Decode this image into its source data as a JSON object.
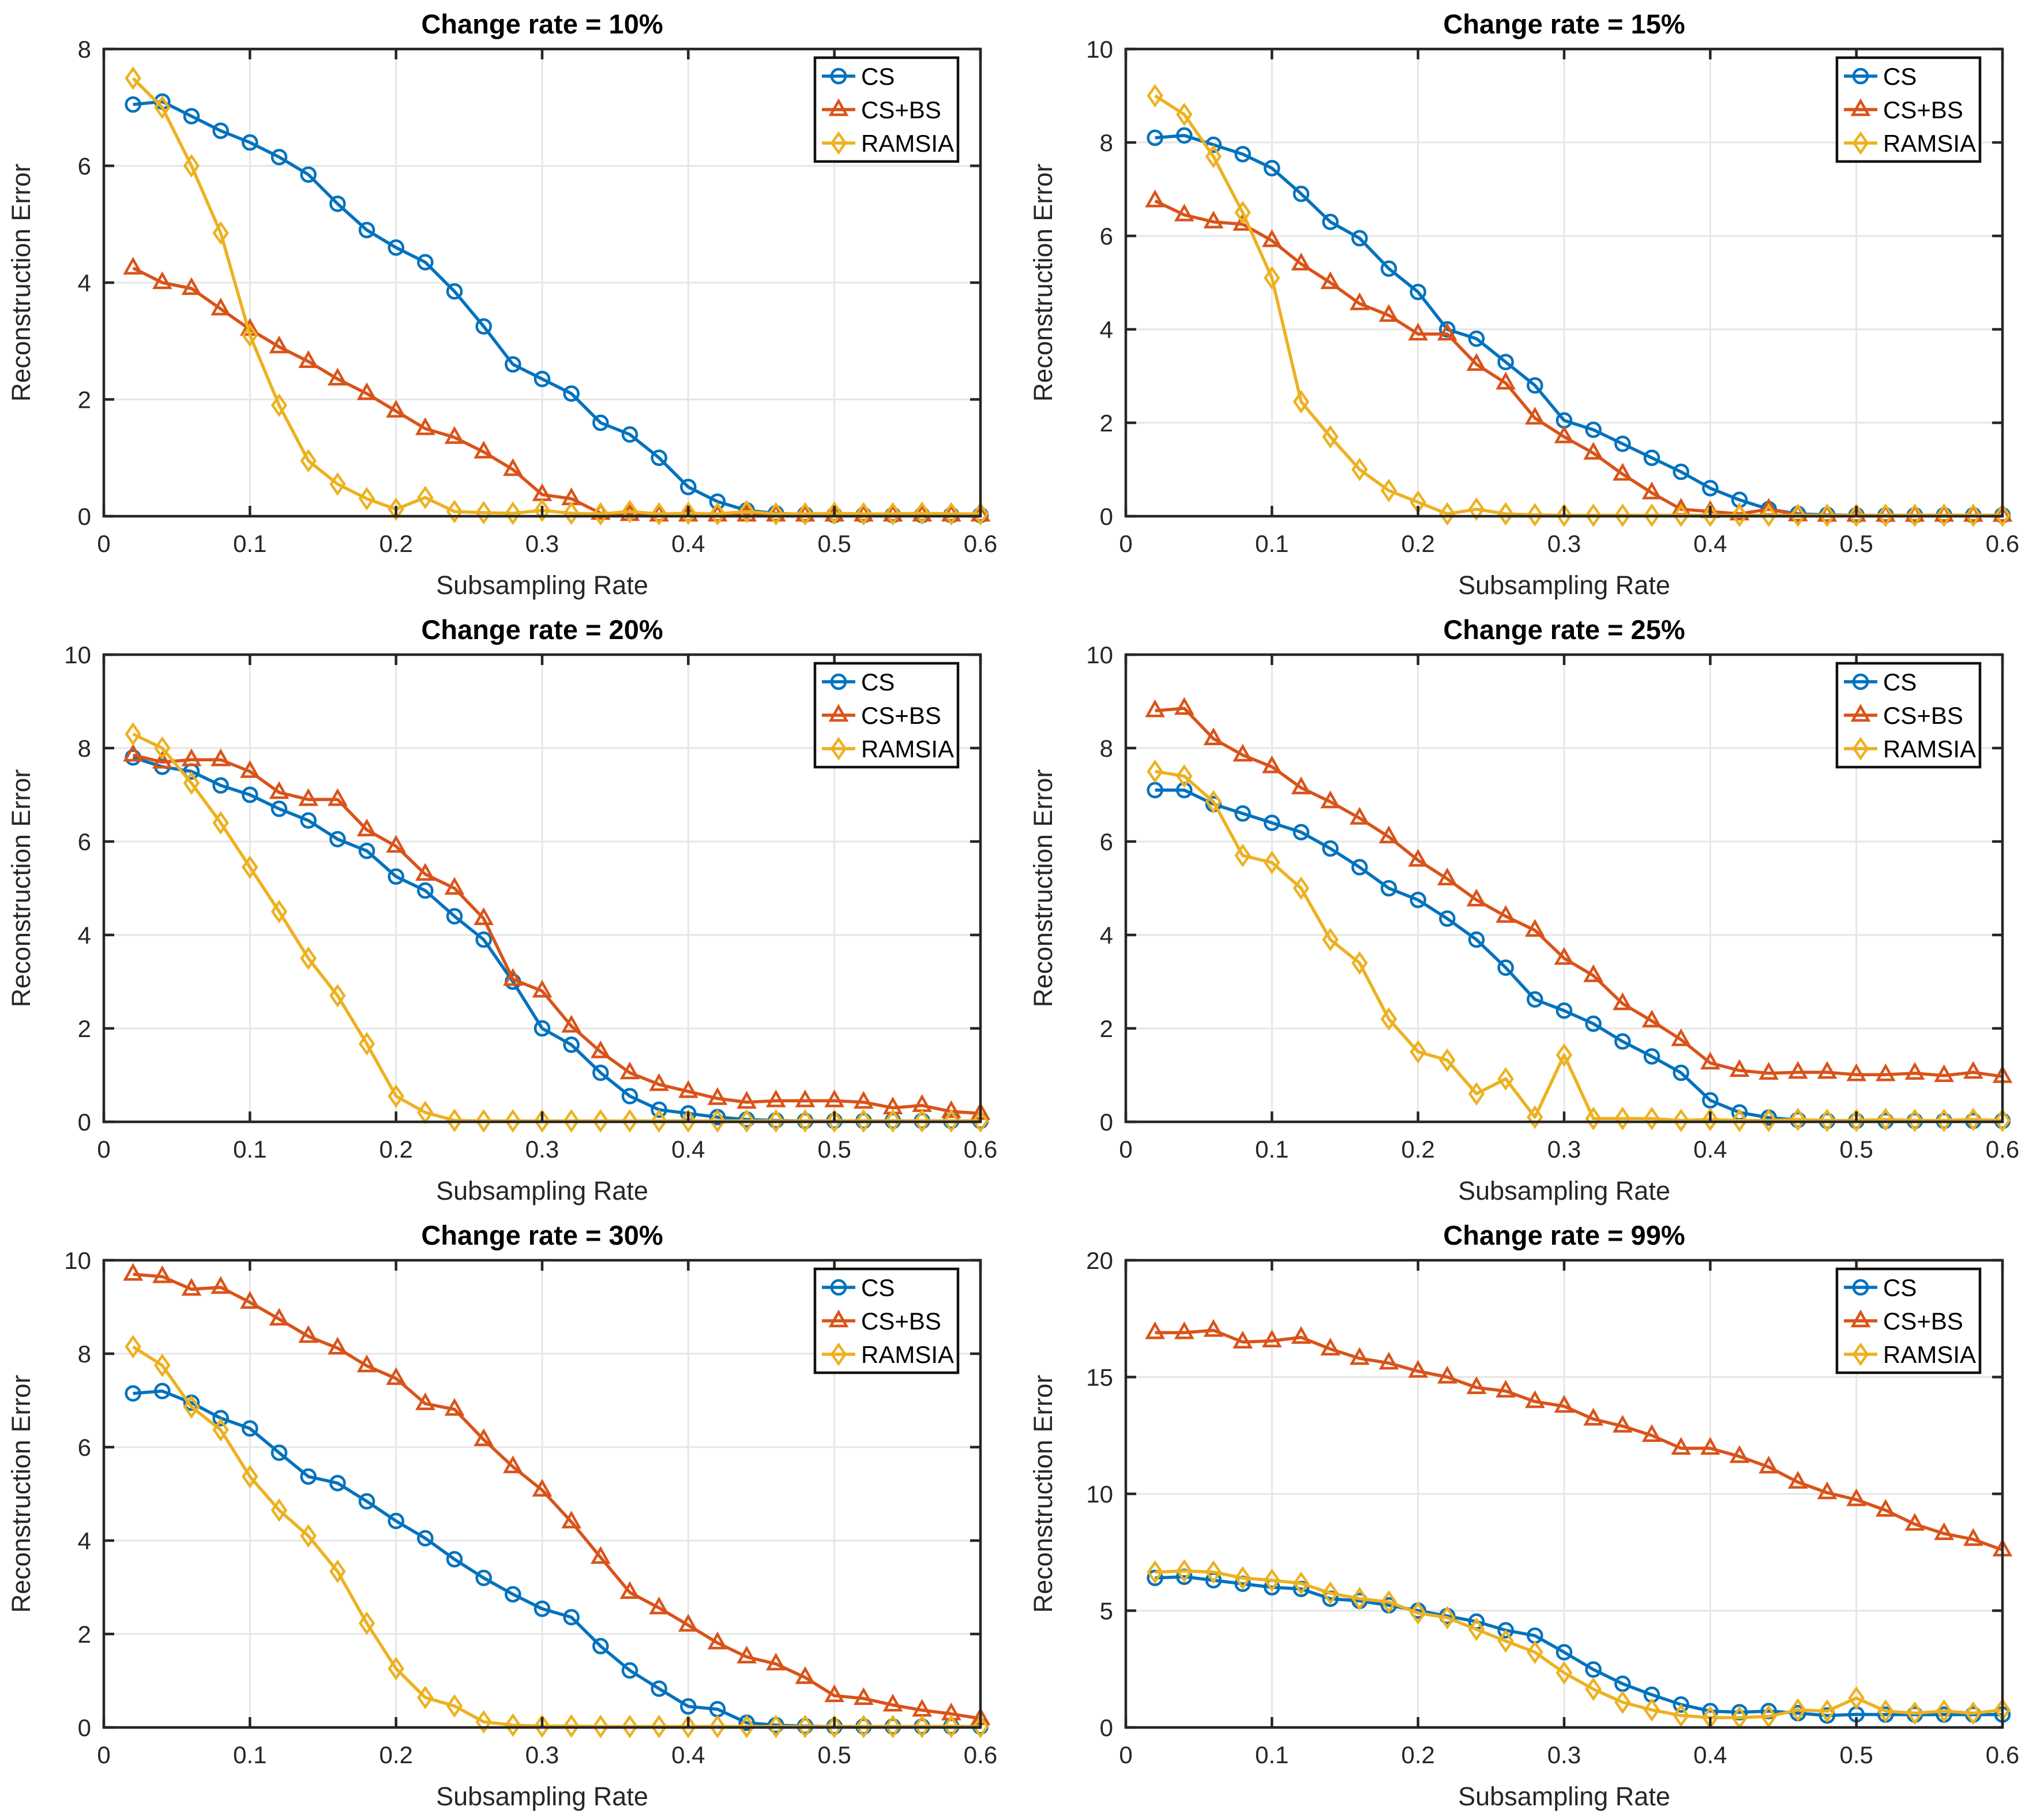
{
  "figure": {
    "xlabel": "Subsampling Rate",
    "ylabel": "Reconstruction Error",
    "legend_labels": [
      "CS",
      "CS+BS",
      "RAMSIA"
    ],
    "colors": {
      "cs": "#0072BD",
      "csbs": "#D95319",
      "ramsia": "#EDB120",
      "axis": "#262626",
      "grid": "#E6E6E6",
      "background": "#FFFFFF"
    }
  },
  "chart_data": [
    {
      "type": "line",
      "title": "Change rate = 10%",
      "xlabel": "Subsampling Rate",
      "ylabel": "Reconstruction Error",
      "xlim": [
        0,
        0.6
      ],
      "ylim": [
        0,
        8
      ],
      "xticks": [
        0,
        0.1,
        0.2,
        0.3,
        0.4,
        0.5,
        0.6
      ],
      "yticks": [
        0,
        2,
        4,
        6,
        8
      ],
      "grid": true,
      "legend_position": "top-right",
      "x": [
        0.02,
        0.04,
        0.06,
        0.08,
        0.1,
        0.12,
        0.14,
        0.16,
        0.18,
        0.2,
        0.22,
        0.24,
        0.26,
        0.28,
        0.3,
        0.32,
        0.34,
        0.36,
        0.38,
        0.4,
        0.42,
        0.44,
        0.46,
        0.48,
        0.5,
        0.52,
        0.54,
        0.56,
        0.58,
        0.6
      ],
      "series": [
        {
          "name": "CS",
          "color": "#0072BD",
          "marker": "circle",
          "values": [
            7.05,
            7.1,
            6.85,
            6.6,
            6.4,
            6.15,
            5.85,
            5.35,
            4.9,
            4.6,
            4.35,
            3.85,
            3.25,
            2.6,
            2.35,
            2.1,
            1.6,
            1.4,
            1.0,
            0.5,
            0.25,
            0.1,
            0.05,
            0.03,
            0.02,
            0.02,
            0.02,
            0.02,
            0.02,
            0.02
          ]
        },
        {
          "name": "CS+BS",
          "color": "#D95319",
          "marker": "triangle",
          "values": [
            4.25,
            4.0,
            3.9,
            3.55,
            3.2,
            2.9,
            2.65,
            2.35,
            2.1,
            1.8,
            1.5,
            1.35,
            1.1,
            0.8,
            0.37,
            0.3,
            0.05,
            0.03,
            0.02,
            0.02,
            0.02,
            0.02,
            0.02,
            0.02,
            0.02,
            0.02,
            0.02,
            0.02,
            0.02,
            0.02
          ]
        },
        {
          "name": "RAMSIA",
          "color": "#EDB120",
          "marker": "diamond",
          "values": [
            7.5,
            7.0,
            6.0,
            4.85,
            3.1,
            1.9,
            0.95,
            0.55,
            0.3,
            0.12,
            0.32,
            0.08,
            0.06,
            0.05,
            0.1,
            0.05,
            0.04,
            0.08,
            0.04,
            0.05,
            0.04,
            0.08,
            0.04,
            0.04,
            0.05,
            0.04,
            0.04,
            0.05,
            0.04,
            0.04
          ]
        }
      ]
    },
    {
      "type": "line",
      "title": "Change rate = 15%",
      "xlabel": "Subsampling Rate",
      "ylabel": "Reconstruction Error",
      "xlim": [
        0,
        0.6
      ],
      "ylim": [
        0,
        10
      ],
      "xticks": [
        0,
        0.1,
        0.2,
        0.3,
        0.4,
        0.5,
        0.6
      ],
      "yticks": [
        0,
        2,
        4,
        6,
        8,
        10
      ],
      "grid": true,
      "legend_position": "top-right",
      "x": [
        0.02,
        0.04,
        0.06,
        0.08,
        0.1,
        0.12,
        0.14,
        0.16,
        0.18,
        0.2,
        0.22,
        0.24,
        0.26,
        0.28,
        0.3,
        0.32,
        0.34,
        0.36,
        0.38,
        0.4,
        0.42,
        0.44,
        0.46,
        0.48,
        0.5,
        0.52,
        0.54,
        0.56,
        0.58,
        0.6
      ],
      "series": [
        {
          "name": "CS",
          "color": "#0072BD",
          "marker": "circle",
          "values": [
            8.1,
            8.15,
            7.95,
            7.75,
            7.45,
            6.9,
            6.3,
            5.95,
            5.3,
            4.8,
            4.0,
            3.8,
            3.3,
            2.8,
            2.05,
            1.85,
            1.55,
            1.25,
            0.95,
            0.6,
            0.35,
            0.15,
            0.05,
            0.03,
            0.02,
            0.02,
            0.02,
            0.02,
            0.02,
            0.02
          ]
        },
        {
          "name": "CS+BS",
          "color": "#D95319",
          "marker": "triangle",
          "values": [
            6.75,
            6.45,
            6.3,
            6.25,
            5.9,
            5.4,
            5.0,
            4.55,
            4.3,
            3.9,
            3.9,
            3.25,
            2.85,
            2.1,
            1.7,
            1.35,
            0.9,
            0.5,
            0.15,
            0.1,
            0.05,
            0.15,
            0.03,
            0.02,
            0.02,
            0.02,
            0.02,
            0.02,
            0.02,
            0.02
          ]
        },
        {
          "name": "RAMSIA",
          "color": "#EDB120",
          "marker": "diamond",
          "values": [
            9.0,
            8.6,
            7.7,
            6.5,
            5.1,
            2.45,
            1.7,
            1.0,
            0.55,
            0.3,
            0.05,
            0.15,
            0.05,
            0.03,
            0.02,
            0.02,
            0.02,
            0.02,
            0.02,
            0.02,
            0.02,
            0.02,
            0.02,
            0.02,
            0.02,
            0.02,
            0.02,
            0.02,
            0.02,
            0.02
          ]
        }
      ]
    },
    {
      "type": "line",
      "title": "Change rate = 20%",
      "xlabel": "Subsampling Rate",
      "ylabel": "Reconstruction Error",
      "xlim": [
        0,
        0.6
      ],
      "ylim": [
        0,
        10
      ],
      "xticks": [
        0,
        0.1,
        0.2,
        0.3,
        0.4,
        0.5,
        0.6
      ],
      "yticks": [
        0,
        2,
        4,
        6,
        8,
        10
      ],
      "grid": true,
      "legend_position": "top-right",
      "x": [
        0.02,
        0.04,
        0.06,
        0.08,
        0.1,
        0.12,
        0.14,
        0.16,
        0.18,
        0.2,
        0.22,
        0.24,
        0.26,
        0.28,
        0.3,
        0.32,
        0.34,
        0.36,
        0.38,
        0.4,
        0.42,
        0.44,
        0.46,
        0.48,
        0.5,
        0.52,
        0.54,
        0.56,
        0.58,
        0.6
      ],
      "series": [
        {
          "name": "CS",
          "color": "#0072BD",
          "marker": "circle",
          "values": [
            7.8,
            7.6,
            7.5,
            7.2,
            7.0,
            6.7,
            6.45,
            6.05,
            5.8,
            5.25,
            4.95,
            4.4,
            3.9,
            3.0,
            2.0,
            1.65,
            1.05,
            0.55,
            0.26,
            0.18,
            0.1,
            0.05,
            0.03,
            0.02,
            0.02,
            0.02,
            0.02,
            0.02,
            0.02,
            0.02
          ]
        },
        {
          "name": "CS+BS",
          "color": "#D95319",
          "marker": "triangle",
          "values": [
            7.85,
            7.7,
            7.75,
            7.75,
            7.5,
            7.05,
            6.9,
            6.9,
            6.25,
            5.9,
            5.3,
            5.0,
            4.35,
            3.05,
            2.8,
            2.05,
            1.5,
            1.05,
            0.8,
            0.65,
            0.5,
            0.42,
            0.45,
            0.45,
            0.45,
            0.42,
            0.3,
            0.35,
            0.22,
            0.18
          ]
        },
        {
          "name": "RAMSIA",
          "color": "#EDB120",
          "marker": "diamond",
          "values": [
            8.3,
            8.0,
            7.25,
            6.4,
            5.45,
            4.5,
            3.5,
            2.7,
            1.67,
            0.55,
            0.2,
            0.03,
            0.02,
            0.02,
            0.02,
            0.02,
            0.02,
            0.02,
            0.02,
            0.02,
            0.02,
            0.02,
            0.02,
            0.02,
            0.02,
            0.02,
            0.02,
            0.02,
            0.02,
            0.02
          ]
        }
      ]
    },
    {
      "type": "line",
      "title": "Change rate = 25%",
      "xlabel": "Subsampling Rate",
      "ylabel": "Reconstruction Error",
      "xlim": [
        0,
        0.6
      ],
      "ylim": [
        0,
        10
      ],
      "xticks": [
        0,
        0.1,
        0.2,
        0.3,
        0.4,
        0.5,
        0.6
      ],
      "yticks": [
        0,
        2,
        4,
        6,
        8,
        10
      ],
      "grid": true,
      "legend_position": "top-right",
      "x": [
        0.02,
        0.04,
        0.06,
        0.08,
        0.1,
        0.12,
        0.14,
        0.16,
        0.18,
        0.2,
        0.22,
        0.24,
        0.26,
        0.28,
        0.3,
        0.32,
        0.34,
        0.36,
        0.38,
        0.4,
        0.42,
        0.44,
        0.46,
        0.48,
        0.5,
        0.52,
        0.54,
        0.56,
        0.58,
        0.6
      ],
      "series": [
        {
          "name": "CS",
          "color": "#0072BD",
          "marker": "circle",
          "values": [
            7.1,
            7.1,
            6.8,
            6.6,
            6.4,
            6.2,
            5.85,
            5.45,
            5.0,
            4.75,
            4.35,
            3.9,
            3.3,
            2.62,
            2.38,
            2.1,
            1.72,
            1.4,
            1.05,
            0.46,
            0.2,
            0.09,
            0.04,
            0.02,
            0.02,
            0.02,
            0.02,
            0.02,
            0.02,
            0.02
          ]
        },
        {
          "name": "CS+BS",
          "color": "#D95319",
          "marker": "triangle",
          "values": [
            8.8,
            8.85,
            8.2,
            7.85,
            7.6,
            7.15,
            6.85,
            6.5,
            6.1,
            5.6,
            5.2,
            4.75,
            4.4,
            4.1,
            3.5,
            3.13,
            2.53,
            2.16,
            1.76,
            1.26,
            1.1,
            1.04,
            1.06,
            1.06,
            1.01,
            1.01,
            1.04,
            0.99,
            1.06,
            0.97
          ]
        },
        {
          "name": "RAMSIA",
          "color": "#EDB120",
          "marker": "diamond",
          "values": [
            7.5,
            7.4,
            6.85,
            5.7,
            5.55,
            5.0,
            3.9,
            3.4,
            2.2,
            1.5,
            1.32,
            0.6,
            0.92,
            0.1,
            1.43,
            0.07,
            0.07,
            0.07,
            0.03,
            0.05,
            0.03,
            0.03,
            0.05,
            0.03,
            0.03,
            0.05,
            0.03,
            0.03,
            0.05,
            0.03
          ]
        }
      ]
    },
    {
      "type": "line",
      "title": "Change rate = 30%",
      "xlabel": "Subsampling Rate",
      "ylabel": "Reconstruction Error",
      "xlim": [
        0,
        0.6
      ],
      "ylim": [
        0,
        10
      ],
      "xticks": [
        0,
        0.1,
        0.2,
        0.3,
        0.4,
        0.5,
        0.6
      ],
      "yticks": [
        0,
        2,
        4,
        6,
        8,
        10
      ],
      "grid": true,
      "legend_position": "top-right",
      "x": [
        0.02,
        0.04,
        0.06,
        0.08,
        0.1,
        0.12,
        0.14,
        0.16,
        0.18,
        0.2,
        0.22,
        0.24,
        0.26,
        0.28,
        0.3,
        0.32,
        0.34,
        0.36,
        0.38,
        0.4,
        0.42,
        0.44,
        0.46,
        0.48,
        0.5,
        0.52,
        0.54,
        0.56,
        0.58,
        0.6
      ],
      "series": [
        {
          "name": "CS",
          "color": "#0072BD",
          "marker": "circle",
          "values": [
            7.15,
            7.2,
            6.95,
            6.62,
            6.4,
            5.88,
            5.37,
            5.23,
            4.84,
            4.42,
            4.05,
            3.6,
            3.2,
            2.85,
            2.54,
            2.36,
            1.74,
            1.22,
            0.83,
            0.45,
            0.39,
            0.1,
            0.05,
            0.03,
            0.02,
            0.02,
            0.02,
            0.02,
            0.02,
            0.02
          ]
        },
        {
          "name": "CS+BS",
          "color": "#D95319",
          "marker": "triangle",
          "values": [
            9.7,
            9.65,
            9.38,
            9.42,
            9.1,
            8.74,
            8.37,
            8.12,
            7.74,
            7.47,
            6.93,
            6.81,
            6.16,
            5.58,
            5.08,
            4.4,
            3.64,
            2.89,
            2.56,
            2.19,
            1.81,
            1.51,
            1.36,
            1.07,
            0.68,
            0.62,
            0.48,
            0.37,
            0.29,
            0.19
          ]
        },
        {
          "name": "RAMSIA",
          "color": "#EDB120",
          "marker": "diamond",
          "values": [
            8.15,
            7.75,
            6.86,
            6.37,
            5.37,
            4.65,
            4.1,
            3.34,
            2.23,
            1.26,
            0.64,
            0.46,
            0.12,
            0.05,
            0.03,
            0.03,
            0.02,
            0.02,
            0.02,
            0.02,
            0.02,
            0.02,
            0.02,
            0.02,
            0.02,
            0.02,
            0.02,
            0.02,
            0.02,
            0.02
          ]
        }
      ]
    },
    {
      "type": "line",
      "title": "Change rate = 99%",
      "xlabel": "Subsampling Rate",
      "ylabel": "Reconstruction Error",
      "xlim": [
        0,
        0.6
      ],
      "ylim": [
        0,
        20
      ],
      "xticks": [
        0,
        0.1,
        0.2,
        0.3,
        0.4,
        0.5,
        0.6
      ],
      "yticks": [
        0,
        5,
        10,
        15,
        20
      ],
      "grid": true,
      "legend_position": "top-right",
      "x": [
        0.02,
        0.04,
        0.06,
        0.08,
        0.1,
        0.12,
        0.14,
        0.16,
        0.18,
        0.2,
        0.22,
        0.24,
        0.26,
        0.28,
        0.3,
        0.32,
        0.34,
        0.36,
        0.38,
        0.4,
        0.42,
        0.44,
        0.46,
        0.48,
        0.5,
        0.52,
        0.54,
        0.56,
        0.58,
        0.6
      ],
      "series": [
        {
          "name": "CS",
          "color": "#0072BD",
          "marker": "circle",
          "values": [
            6.4,
            6.45,
            6.3,
            6.15,
            6.0,
            5.93,
            5.51,
            5.42,
            5.23,
            5.0,
            4.77,
            4.53,
            4.16,
            3.93,
            3.22,
            2.48,
            1.87,
            1.4,
            0.98,
            0.7,
            0.65,
            0.7,
            0.61,
            0.51,
            0.56,
            0.55,
            0.55,
            0.55,
            0.55,
            0.55
          ]
        },
        {
          "name": "CS+BS",
          "color": "#D95319",
          "marker": "triangle",
          "values": [
            16.9,
            16.9,
            17.0,
            16.5,
            16.55,
            16.7,
            16.2,
            15.8,
            15.6,
            15.25,
            15.0,
            14.55,
            14.4,
            13.95,
            13.75,
            13.2,
            12.9,
            12.5,
            11.95,
            11.95,
            11.6,
            11.15,
            10.5,
            10.05,
            9.75,
            9.3,
            8.7,
            8.3,
            8.05,
            7.6
          ]
        },
        {
          "name": "RAMSIA",
          "color": "#EDB120",
          "marker": "diamond",
          "values": [
            6.65,
            6.7,
            6.65,
            6.4,
            6.3,
            6.17,
            5.75,
            5.51,
            5.37,
            4.9,
            4.7,
            4.2,
            3.7,
            3.22,
            2.34,
            1.64,
            1.08,
            0.75,
            0.51,
            0.42,
            0.42,
            0.47,
            0.75,
            0.7,
            1.26,
            0.7,
            0.61,
            0.7,
            0.61,
            0.75
          ]
        }
      ]
    }
  ]
}
